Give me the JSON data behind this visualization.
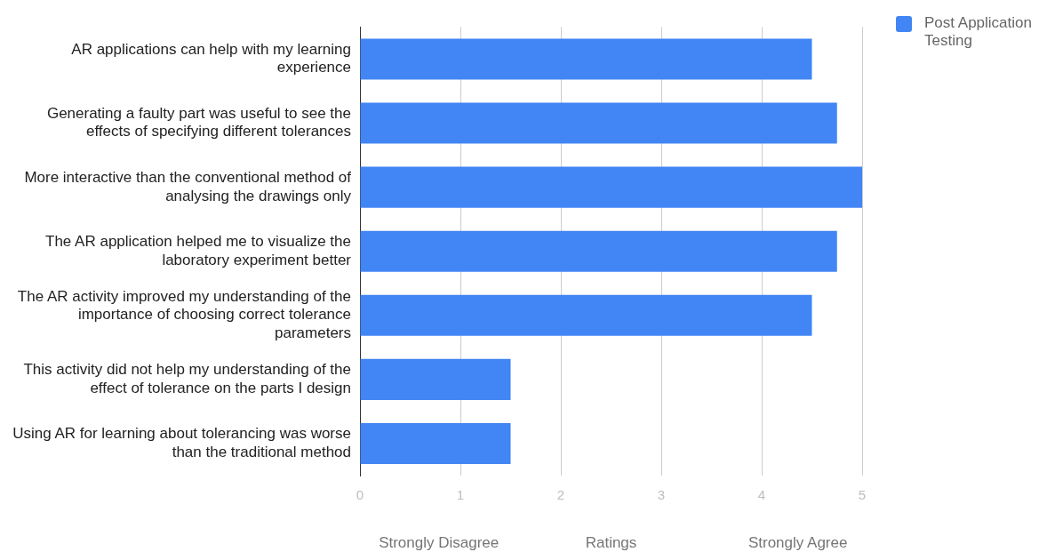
{
  "chart_data": {
    "type": "bar",
    "orientation": "horizontal",
    "xlabel": "Ratings",
    "annotations": [
      "Strongly Disagree",
      "Strongly Agree"
    ],
    "categories": [
      "AR applications can help with my learning experience",
      "Generating a faulty part was useful to see the effects of specifying different tolerances",
      "More interactive than the conventional method of analysing the drawings only",
      "The AR application helped me to visualize the laboratory experiment better",
      "The AR activity improved my understanding of the importance of choosing correct tolerance parameters",
      "This activity did not help my understanding of the effect of tolerance on the parts I design",
      "Using AR for learning about tolerancing was worse than the traditional method"
    ],
    "series": [
      {
        "name": "Post Application Testing",
        "color": "#4285f4",
        "values": [
          4.5,
          4.75,
          5,
          4.75,
          4.5,
          1.5,
          1.5
        ]
      }
    ],
    "xlim": [
      0,
      5
    ],
    "xticks": [
      0,
      1,
      2,
      3,
      4,
      5
    ],
    "grid": "x",
    "legend": "top right"
  }
}
